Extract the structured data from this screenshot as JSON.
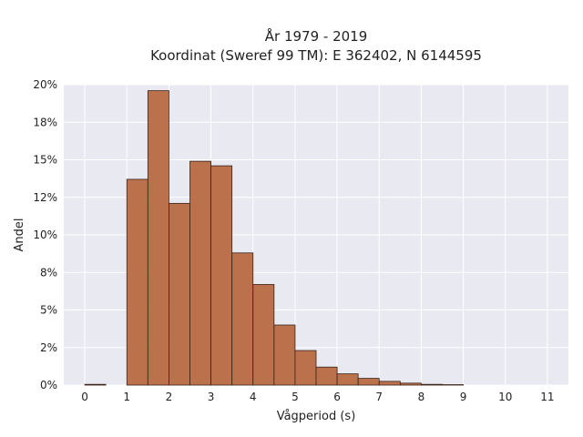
{
  "chart_data": {
    "type": "bar",
    "title": "År 1979 - 2019",
    "subtitle": "Koordinat (Sweref 99 TM): E 362402, N 6144595",
    "xlabel": "Vågperiod (s)",
    "ylabel": "Andel",
    "xlim": [
      -0.5,
      11.5
    ],
    "ylim": [
      0,
      0.2
    ],
    "x_ticks": [
      0,
      1,
      2,
      3,
      4,
      5,
      6,
      7,
      8,
      9,
      10,
      11
    ],
    "x_tick_labels": [
      "0",
      "1",
      "2",
      "3",
      "4",
      "5",
      "6",
      "7",
      "8",
      "9",
      "10",
      "11"
    ],
    "y_ticks": [
      0,
      0.025,
      0.05,
      0.075,
      0.1,
      0.125,
      0.15,
      0.175,
      0.2
    ],
    "y_tick_labels": [
      "0%",
      "2%",
      "5%",
      "8%",
      "10%",
      "12%",
      "15%",
      "18%",
      "20%"
    ],
    "grid": true,
    "bar_color": "#b5643a",
    "bar_edge_color": "#3a2418",
    "plot_background": "#e9e9f2",
    "bins": [
      {
        "x0": 0.0,
        "x1": 0.5,
        "value": 0.0005
      },
      {
        "x0": 1.0,
        "x1": 1.5,
        "value": 0.137
      },
      {
        "x0": 1.5,
        "x1": 2.0,
        "value": 0.196
      },
      {
        "x0": 2.0,
        "x1": 2.5,
        "value": 0.121
      },
      {
        "x0": 2.5,
        "x1": 3.0,
        "value": 0.149
      },
      {
        "x0": 3.0,
        "x1": 3.5,
        "value": 0.146
      },
      {
        "x0": 3.5,
        "x1": 4.0,
        "value": 0.088
      },
      {
        "x0": 4.0,
        "x1": 4.5,
        "value": 0.067
      },
      {
        "x0": 4.5,
        "x1": 5.0,
        "value": 0.04
      },
      {
        "x0": 5.0,
        "x1": 5.5,
        "value": 0.023
      },
      {
        "x0": 5.5,
        "x1": 6.0,
        "value": 0.012
      },
      {
        "x0": 6.0,
        "x1": 6.5,
        "value": 0.0075
      },
      {
        "x0": 6.5,
        "x1": 7.0,
        "value": 0.0045
      },
      {
        "x0": 7.0,
        "x1": 7.5,
        "value": 0.0025
      },
      {
        "x0": 7.5,
        "x1": 8.0,
        "value": 0.0013
      },
      {
        "x0": 8.0,
        "x1": 8.5,
        "value": 0.0005
      },
      {
        "x0": 8.5,
        "x1": 9.0,
        "value": 0.0003
      }
    ]
  }
}
